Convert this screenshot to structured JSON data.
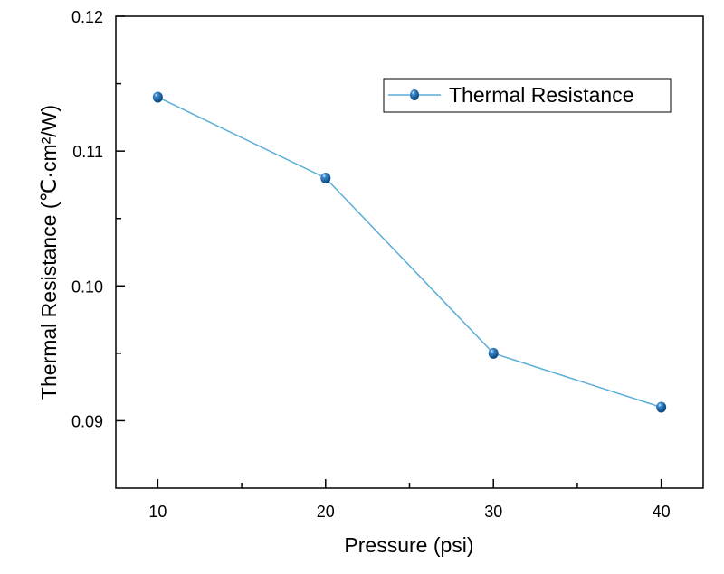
{
  "chart_data": {
    "type": "line",
    "title": "",
    "xlabel": "Pressure (psi)",
    "ylabel": "Thermal Resistance (℃·cm²/W)",
    "xlim": [
      7.5,
      42.5
    ],
    "ylim": [
      0.085,
      0.12
    ],
    "xticks": [
      10,
      20,
      30,
      40
    ],
    "xtick_labels": [
      "10",
      "20",
      "30",
      "40"
    ],
    "yticks": [
      0.09,
      0.1,
      0.11,
      0.12
    ],
    "ytick_labels": [
      "0.09",
      "0.10",
      "0.11",
      "0.12"
    ],
    "grid": false,
    "legend_position": "top-right",
    "series": [
      {
        "name": "Thermal Resistance",
        "x": [
          10,
          20,
          30,
          40
        ],
        "y": [
          0.114,
          0.108,
          0.095,
          0.091
        ],
        "line_color": "#5aaed8",
        "marker_color": "#0e5b9c"
      }
    ]
  }
}
